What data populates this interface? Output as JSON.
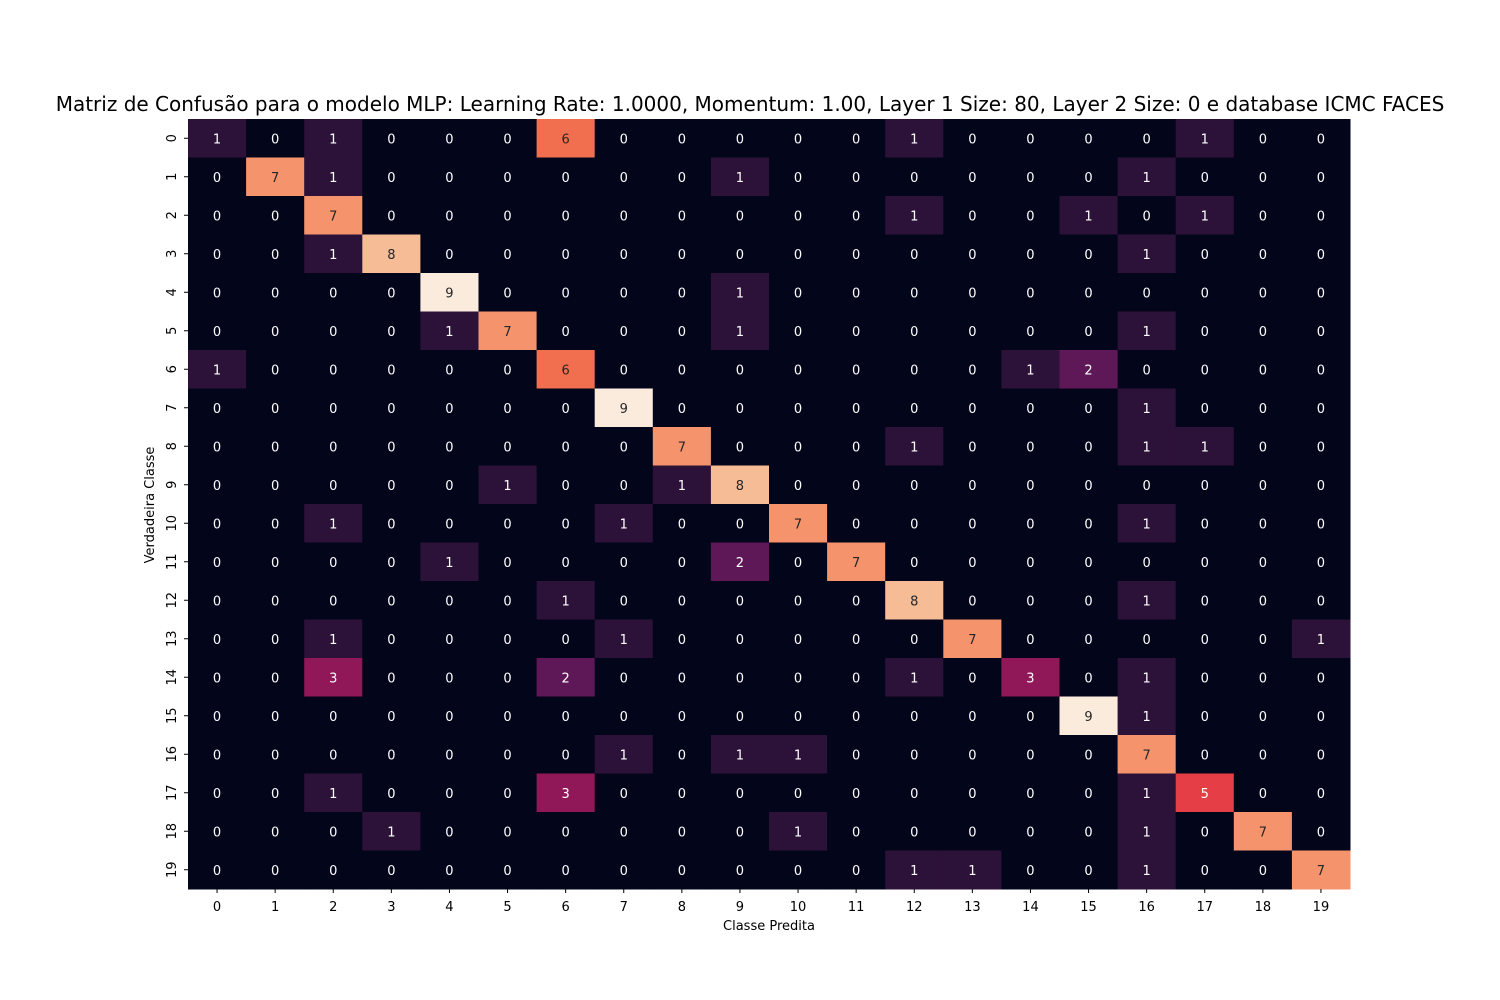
{
  "chart_data": {
    "type": "heatmap",
    "title": "Matriz de Confusão para o modelo MLP: Learning Rate: 1.0000, Momentum: 1.00, Layer 1 Size: 80, Layer 2 Size: 0 e database ICMC FACES",
    "xlabel": "Classe Predita",
    "ylabel": "Verdadeira Classe",
    "x_categories": [
      "0",
      "1",
      "2",
      "3",
      "4",
      "5",
      "6",
      "7",
      "8",
      "9",
      "10",
      "11",
      "12",
      "13",
      "14",
      "15",
      "16",
      "17",
      "18",
      "19"
    ],
    "y_categories": [
      "0",
      "1",
      "2",
      "3",
      "4",
      "5",
      "6",
      "7",
      "8",
      "9",
      "10",
      "11",
      "12",
      "13",
      "14",
      "15",
      "16",
      "17",
      "18",
      "19"
    ],
    "values": [
      [
        1,
        0,
        1,
        0,
        0,
        0,
        6,
        0,
        0,
        0,
        0,
        0,
        1,
        0,
        0,
        0,
        0,
        1,
        0,
        0
      ],
      [
        0,
        7,
        1,
        0,
        0,
        0,
        0,
        0,
        0,
        1,
        0,
        0,
        0,
        0,
        0,
        0,
        1,
        0,
        0,
        0
      ],
      [
        0,
        0,
        7,
        0,
        0,
        0,
        0,
        0,
        0,
        0,
        0,
        0,
        1,
        0,
        0,
        1,
        0,
        1,
        0,
        0
      ],
      [
        0,
        0,
        1,
        8,
        0,
        0,
        0,
        0,
        0,
        0,
        0,
        0,
        0,
        0,
        0,
        0,
        1,
        0,
        0,
        0
      ],
      [
        0,
        0,
        0,
        0,
        9,
        0,
        0,
        0,
        0,
        1,
        0,
        0,
        0,
        0,
        0,
        0,
        0,
        0,
        0,
        0
      ],
      [
        0,
        0,
        0,
        0,
        1,
        7,
        0,
        0,
        0,
        1,
        0,
        0,
        0,
        0,
        0,
        0,
        1,
        0,
        0,
        0
      ],
      [
        1,
        0,
        0,
        0,
        0,
        0,
        6,
        0,
        0,
        0,
        0,
        0,
        0,
        0,
        1,
        2,
        0,
        0,
        0,
        0
      ],
      [
        0,
        0,
        0,
        0,
        0,
        0,
        0,
        9,
        0,
        0,
        0,
        0,
        0,
        0,
        0,
        0,
        1,
        0,
        0,
        0
      ],
      [
        0,
        0,
        0,
        0,
        0,
        0,
        0,
        0,
        7,
        0,
        0,
        0,
        1,
        0,
        0,
        0,
        1,
        1,
        0,
        0
      ],
      [
        0,
        0,
        0,
        0,
        0,
        1,
        0,
        0,
        1,
        8,
        0,
        0,
        0,
        0,
        0,
        0,
        0,
        0,
        0,
        0
      ],
      [
        0,
        0,
        1,
        0,
        0,
        0,
        0,
        1,
        0,
        0,
        7,
        0,
        0,
        0,
        0,
        0,
        1,
        0,
        0,
        0
      ],
      [
        0,
        0,
        0,
        0,
        1,
        0,
        0,
        0,
        0,
        2,
        0,
        7,
        0,
        0,
        0,
        0,
        0,
        0,
        0,
        0
      ],
      [
        0,
        0,
        0,
        0,
        0,
        0,
        1,
        0,
        0,
        0,
        0,
        0,
        8,
        0,
        0,
        0,
        1,
        0,
        0,
        0
      ],
      [
        0,
        0,
        1,
        0,
        0,
        0,
        0,
        1,
        0,
        0,
        0,
        0,
        0,
        7,
        0,
        0,
        0,
        0,
        0,
        1
      ],
      [
        0,
        0,
        3,
        0,
        0,
        0,
        2,
        0,
        0,
        0,
        0,
        0,
        1,
        0,
        3,
        0,
        1,
        0,
        0,
        0
      ],
      [
        0,
        0,
        0,
        0,
        0,
        0,
        0,
        0,
        0,
        0,
        0,
        0,
        0,
        0,
        0,
        9,
        1,
        0,
        0,
        0
      ],
      [
        0,
        0,
        0,
        0,
        0,
        0,
        0,
        1,
        0,
        1,
        1,
        0,
        0,
        0,
        0,
        0,
        7,
        0,
        0,
        0
      ],
      [
        0,
        0,
        1,
        0,
        0,
        0,
        3,
        0,
        0,
        0,
        0,
        0,
        0,
        0,
        0,
        0,
        1,
        5,
        0,
        0
      ],
      [
        0,
        0,
        0,
        1,
        0,
        0,
        0,
        0,
        0,
        0,
        1,
        0,
        0,
        0,
        0,
        0,
        1,
        0,
        7,
        0
      ],
      [
        0,
        0,
        0,
        0,
        0,
        0,
        0,
        0,
        0,
        0,
        0,
        0,
        1,
        1,
        0,
        0,
        1,
        0,
        0,
        7
      ]
    ],
    "vmin": 0,
    "vmax": 9,
    "colormap": "rocket",
    "colorbar": false,
    "grid": false
  }
}
